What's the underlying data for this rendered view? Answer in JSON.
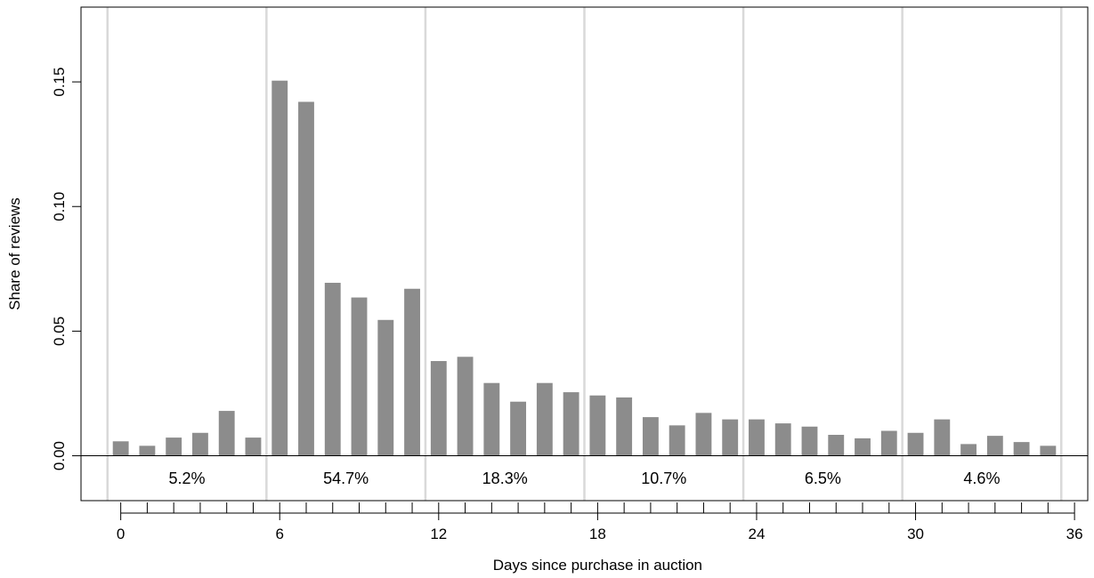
{
  "chart_data": {
    "type": "bar",
    "xlabel": "Days since purchase in auction",
    "ylabel": "Share of reviews",
    "xlim": [
      -1.5,
      36.5
    ],
    "ylim": [
      -0.018,
      0.18
    ],
    "x_ticks": [
      "0",
      "6",
      "12",
      "18",
      "24",
      "30",
      "36"
    ],
    "y_ticks": [
      "0.00",
      "0.05",
      "0.10",
      "0.15"
    ],
    "grid": "vertical lines at window boundaries",
    "bar_color": "#8c8c8c",
    "grid_color": "#d9d9d9",
    "x": [
      0,
      1,
      2,
      3,
      4,
      5,
      6,
      7,
      8,
      9,
      10,
      11,
      12,
      13,
      14,
      15,
      16,
      17,
      18,
      19,
      20,
      21,
      22,
      23,
      24,
      25,
      26,
      27,
      28,
      29,
      30,
      31,
      32,
      33,
      34,
      35
    ],
    "values": [
      0.0058,
      0.004,
      0.0073,
      0.0092,
      0.018,
      0.0073,
      0.1505,
      0.142,
      0.0694,
      0.0635,
      0.0545,
      0.067,
      0.038,
      0.0397,
      0.0292,
      0.0217,
      0.0292,
      0.0255,
      0.0242,
      0.0234,
      0.0155,
      0.0122,
      0.0172,
      0.0146,
      0.0146,
      0.013,
      0.0117,
      0.0084,
      0.007,
      0.01,
      0.0092,
      0.0146,
      0.0047,
      0.008,
      0.0055,
      0.004
    ],
    "windows": [
      {
        "start": -0.5,
        "end": 5.5,
        "label": "5.2%"
      },
      {
        "start": 5.5,
        "end": 11.5,
        "label": "54.7%"
      },
      {
        "start": 11.5,
        "end": 17.5,
        "label": "18.3%"
      },
      {
        "start": 17.5,
        "end": 23.5,
        "label": "10.7%"
      },
      {
        "start": 23.5,
        "end": 29.5,
        "label": "6.5%"
      },
      {
        "start": 29.5,
        "end": 35.5,
        "label": "4.6%"
      }
    ]
  }
}
